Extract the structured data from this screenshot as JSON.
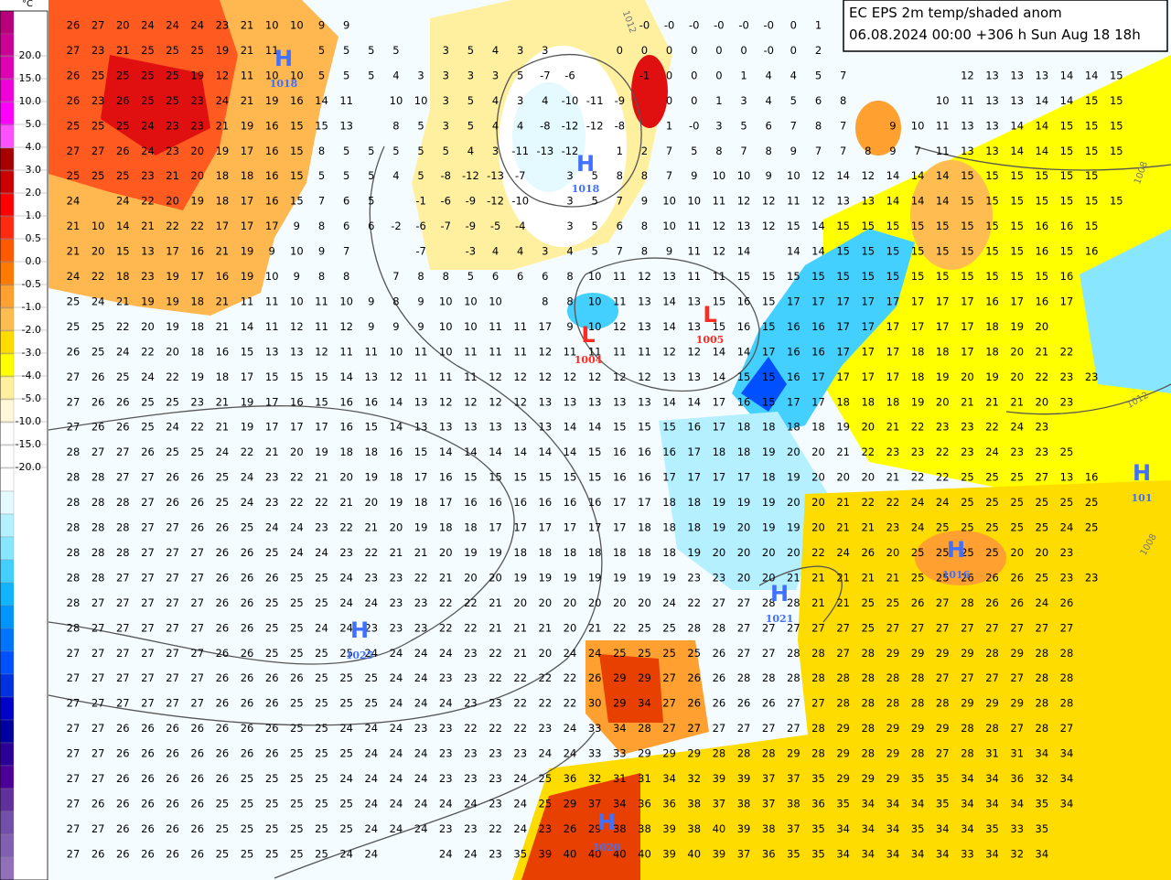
{
  "title_box": {
    "line1": "EC EPS 2m temp/shaded anom",
    "line2": "06.08.2024 00:00 +306 h Sun Aug 18 18h"
  },
  "colorbar": {
    "unit": "°C",
    "labels": [
      "20.0",
      "15.0",
      "10.0",
      "5.0",
      "4.0",
      "3.0",
      "2.0",
      "1.0",
      "0.5",
      "0.0",
      "-0.5",
      "-1.0",
      "-2.0",
      "-3.0",
      "-4.0",
      "-5.0",
      "-10.0",
      "-15.0",
      "-20.0"
    ],
    "colors": [
      "#b8007a",
      "#cc0094",
      "#e000b4",
      "#f000d8",
      "#ff00ff",
      "#ff50ff",
      "#a80000",
      "#cc0000",
      "#ff0000",
      "#ff2a10",
      "#ff5a00",
      "#ff7a00",
      "#ffa030",
      "#ffbc50",
      "#ffdc00",
      "#ffff00",
      "#fff0a0",
      "#fff8d8",
      "#ffffff",
      "#ffffff",
      "#ffffff",
      "#e4faff",
      "#b4f0ff",
      "#88e6ff",
      "#44d0ff",
      "#10b4ff",
      "#0094ff",
      "#0074ff",
      "#0050ff",
      "#0030e0",
      "#0000c8",
      "#0000a0",
      "#2c0098",
      "#4c0098",
      "#60309c",
      "#7050a8",
      "#8060b0",
      "#9070b8"
    ]
  },
  "pressure_centers": [
    {
      "symbol": "H",
      "value": "1018"
    },
    {
      "symbol": "H",
      "value": "1018"
    },
    {
      "symbol": "L",
      "value": "1004"
    },
    {
      "symbol": "L",
      "value": "1005"
    },
    {
      "symbol": "H",
      "value": "1025"
    },
    {
      "symbol": "H",
      "value": "1021"
    },
    {
      "symbol": "H",
      "value": "1016"
    },
    {
      "symbol": "H",
      "value": "1020"
    },
    {
      "symbol": "H",
      "value": "101"
    }
  ],
  "isobar_labels": [
    "1012",
    "1008",
    "1012",
    "1008"
  ],
  "grid": [
    [
      26,
      27,
      20,
      24,
      24,
      24,
      23,
      21,
      10,
      10,
      9,
      9,
      null,
      null,
      null,
      null,
      null,
      null,
      null,
      null,
      null,
      null,
      null,
      {
        "value": 0,
        "label": "-0"
      },
      {
        "value": 0,
        "label": "-0"
      },
      {
        "value": 0,
        "label": "-0"
      },
      {
        "value": 0,
        "label": "-0"
      },
      {
        "value": 0,
        "label": "-0"
      },
      {
        "value": 0,
        "label": "-0"
      },
      0,
      1
    ],
    [
      27,
      23,
      21,
      25,
      25,
      25,
      19,
      21,
      11,
      null,
      5,
      5,
      5,
      5,
      null,
      3,
      5,
      4,
      3,
      3,
      null,
      null,
      0,
      0,
      0,
      0,
      0,
      0,
      {
        "value": 0,
        "label": "-0"
      },
      0,
      2
    ],
    [
      26,
      25,
      25,
      25,
      25,
      19,
      12,
      11,
      10,
      10,
      5,
      5,
      5,
      4,
      3,
      3,
      3,
      3,
      5,
      -7,
      -6,
      null,
      null,
      -1,
      0,
      0,
      0,
      1,
      4,
      4,
      5,
      7,
      null,
      null,
      null,
      null,
      12,
      13,
      13,
      13,
      14,
      14,
      15
    ],
    [
      26,
      23,
      26,
      25,
      25,
      23,
      24,
      21,
      19,
      16,
      14,
      11,
      null,
      10,
      10,
      3,
      5,
      4,
      3,
      4,
      -10,
      -11,
      -9,
      null,
      0,
      0,
      1,
      3,
      4,
      5,
      6,
      8,
      null,
      null,
      null,
      10,
      11,
      13,
      13,
      14,
      14,
      15,
      15
    ],
    [
      25,
      25,
      25,
      24,
      23,
      23,
      21,
      19,
      16,
      15,
      15,
      13,
      null,
      8,
      5,
      3,
      5,
      4,
      4,
      -8,
      -12,
      -12,
      -8,
      null,
      1,
      {
        "value": 0,
        "label": "-0"
      },
      3,
      5,
      6,
      7,
      8,
      7,
      null,
      9,
      10,
      11,
      13,
      13,
      14,
      14,
      15,
      15,
      15
    ],
    [
      27,
      27,
      26,
      24,
      23,
      20,
      19,
      17,
      16,
      15,
      8,
      5,
      5,
      5,
      5,
      5,
      4,
      3,
      -11,
      -13,
      -12,
      null,
      1,
      2,
      7,
      5,
      8,
      7,
      8,
      9,
      7,
      7,
      8,
      9,
      7,
      11,
      13,
      13,
      14,
      14,
      15,
      15,
      15
    ],
    [
      25,
      25,
      25,
      23,
      21,
      20,
      18,
      18,
      16,
      15,
      5,
      5,
      5,
      4,
      5,
      -8,
      -12,
      -13,
      -7,
      null,
      3,
      5,
      8,
      8,
      7,
      9,
      10,
      10,
      9,
      10,
      12,
      14,
      12,
      14,
      14,
      14,
      15,
      15,
      15,
      15,
      15,
      15
    ],
    [
      24,
      null,
      24,
      22,
      20,
      19,
      18,
      17,
      16,
      15,
      7,
      6,
      5,
      null,
      -1,
      -6,
      -9,
      -12,
      -10,
      null,
      3,
      5,
      7,
      9,
      10,
      10,
      11,
      12,
      12,
      11,
      12,
      13,
      13,
      14,
      14,
      14,
      15,
      15,
      15,
      15,
      15,
      15,
      15
    ],
    [
      21,
      10,
      14,
      21,
      22,
      22,
      17,
      17,
      17,
      9,
      8,
      6,
      6,
      -2,
      -6,
      -7,
      -9,
      -5,
      -4,
      null,
      3,
      5,
      6,
      8,
      10,
      11,
      12,
      13,
      12,
      15,
      14,
      15,
      15,
      15,
      15,
      15,
      15,
      15,
      15,
      16,
      16,
      15
    ],
    [
      21,
      20,
      15,
      13,
      17,
      16,
      21,
      19,
      9,
      10,
      9,
      7,
      null,
      null,
      -7,
      null,
      -3,
      4,
      4,
      3,
      4,
      5,
      7,
      8,
      9,
      11,
      12,
      14,
      null,
      14,
      14,
      15,
      15,
      15,
      15,
      15,
      15,
      15,
      15,
      16,
      15,
      16
    ],
    [
      24,
      22,
      18,
      23,
      19,
      17,
      16,
      19,
      10,
      9,
      8,
      8,
      null,
      7,
      8,
      8,
      5,
      6,
      6,
      6,
      8,
      10,
      11,
      12,
      13,
      11,
      11,
      15,
      15,
      15,
      15,
      15,
      15,
      15,
      15,
      15,
      15,
      15,
      15,
      15,
      16
    ],
    [
      25,
      24,
      21,
      19,
      19,
      18,
      21,
      11,
      11,
      10,
      11,
      10,
      9,
      8,
      9,
      10,
      10,
      10,
      null,
      8,
      8,
      10,
      11,
      13,
      14,
      13,
      15,
      16,
      15,
      17,
      17,
      17,
      17,
      17,
      17,
      17,
      17,
      16,
      17,
      16,
      17
    ],
    [
      25,
      25,
      22,
      20,
      19,
      18,
      21,
      14,
      11,
      12,
      11,
      12,
      9,
      9,
      9,
      10,
      10,
      11,
      11,
      17,
      9,
      10,
      12,
      13,
      14,
      13,
      15,
      16,
      15,
      16,
      16,
      17,
      17,
      17,
      17,
      17,
      17,
      18,
      19,
      20
    ],
    [
      26,
      25,
      24,
      22,
      20,
      18,
      16,
      15,
      13,
      13,
      12,
      11,
      11,
      10,
      11,
      10,
      11,
      11,
      11,
      12,
      11,
      11,
      11,
      11,
      12,
      12,
      14,
      14,
      17,
      16,
      16,
      17,
      17,
      17,
      18,
      18,
      17,
      18,
      20,
      21,
      22
    ],
    [
      27,
      26,
      25,
      24,
      22,
      19,
      18,
      17,
      15,
      15,
      15,
      14,
      13,
      12,
      11,
      11,
      11,
      12,
      12,
      12,
      12,
      12,
      12,
      12,
      13,
      13,
      14,
      15,
      15,
      16,
      17,
      17,
      17,
      17,
      18,
      19,
      20,
      19,
      20,
      22,
      23,
      23
    ],
    [
      27,
      26,
      26,
      25,
      25,
      23,
      21,
      19,
      17,
      16,
      15,
      16,
      16,
      14,
      13,
      12,
      12,
      12,
      12,
      13,
      13,
      13,
      13,
      13,
      14,
      14,
      17,
      16,
      15,
      17,
      17,
      18,
      18,
      18,
      19,
      20,
      21,
      21,
      21,
      20,
      23
    ],
    [
      27,
      26,
      26,
      25,
      24,
      22,
      21,
      19,
      17,
      17,
      17,
      16,
      15,
      14,
      13,
      13,
      13,
      13,
      13,
      13,
      14,
      14,
      15,
      15,
      15,
      16,
      17,
      18,
      18,
      18,
      18,
      19,
      20,
      21,
      22,
      23,
      23,
      22,
      24,
      23
    ],
    [
      28,
      27,
      27,
      26,
      25,
      25,
      24,
      22,
      21,
      20,
      19,
      18,
      18,
      16,
      15,
      14,
      14,
      14,
      14,
      14,
      14,
      15,
      16,
      16,
      16,
      17,
      18,
      18,
      19,
      20,
      20,
      21,
      22,
      23,
      23,
      22,
      23,
      24,
      23,
      23,
      25
    ],
    [
      28,
      28,
      27,
      27,
      26,
      26,
      25,
      24,
      23,
      22,
      21,
      20,
      19,
      18,
      17,
      16,
      15,
      15,
      15,
      15,
      15,
      15,
      16,
      16,
      17,
      17,
      17,
      17,
      18,
      19,
      20,
      20,
      20,
      21,
      22,
      22,
      25,
      25,
      25,
      27,
      13,
      16
    ],
    [
      28,
      28,
      28,
      27,
      26,
      26,
      25,
      24,
      23,
      22,
      22,
      21,
      20,
      19,
      18,
      17,
      16,
      16,
      16,
      16,
      16,
      16,
      17,
      17,
      18,
      18,
      19,
      19,
      19,
      20,
      20,
      21,
      22,
      22,
      24,
      24,
      25,
      25,
      25,
      25,
      25,
      25
    ],
    [
      28,
      28,
      28,
      27,
      27,
      26,
      26,
      25,
      24,
      24,
      23,
      22,
      21,
      20,
      19,
      18,
      18,
      17,
      17,
      17,
      17,
      17,
      17,
      18,
      18,
      18,
      19,
      20,
      19,
      19,
      20,
      21,
      21,
      23,
      24,
      25,
      25,
      25,
      25,
      25,
      24,
      25
    ],
    [
      28,
      28,
      28,
      27,
      27,
      27,
      26,
      26,
      25,
      24,
      24,
      23,
      22,
      21,
      21,
      20,
      19,
      19,
      18,
      18,
      18,
      18,
      18,
      18,
      18,
      19,
      20,
      20,
      20,
      20,
      22,
      24,
      26,
      20,
      25,
      25,
      25,
      25,
      20,
      20,
      23
    ],
    [
      28,
      28,
      27,
      27,
      27,
      27,
      26,
      26,
      26,
      25,
      25,
      24,
      23,
      23,
      22,
      21,
      20,
      20,
      19,
      19,
      19,
      19,
      19,
      19,
      19,
      23,
      23,
      20,
      20,
      21,
      21,
      21,
      21,
      21,
      25,
      25,
      26,
      26,
      26,
      25,
      23,
      23
    ],
    [
      28,
      27,
      27,
      27,
      27,
      27,
      26,
      26,
      25,
      25,
      25,
      24,
      24,
      23,
      23,
      22,
      22,
      21,
      20,
      20,
      20,
      20,
      20,
      20,
      24,
      22,
      27,
      27,
      28,
      28,
      21,
      21,
      25,
      25,
      26,
      27,
      28,
      26,
      26,
      24,
      26
    ],
    [
      28,
      27,
      27,
      27,
      27,
      27,
      26,
      26,
      25,
      25,
      24,
      24,
      23,
      23,
      23,
      22,
      22,
      21,
      21,
      21,
      20,
      21,
      22,
      25,
      25,
      28,
      28,
      27,
      27,
      27,
      27,
      27,
      25,
      27,
      27,
      27,
      27,
      27,
      27,
      27,
      27
    ],
    [
      27,
      27,
      27,
      27,
      27,
      27,
      26,
      26,
      25,
      25,
      25,
      25,
      24,
      24,
      24,
      24,
      23,
      22,
      21,
      20,
      24,
      24,
      25,
      25,
      25,
      25,
      26,
      27,
      27,
      28,
      28,
      27,
      28,
      29,
      29,
      29,
      29,
      28,
      29,
      28,
      28
    ],
    [
      27,
      27,
      27,
      27,
      27,
      27,
      26,
      26,
      26,
      26,
      25,
      25,
      25,
      24,
      24,
      23,
      23,
      22,
      22,
      22,
      22,
      26,
      29,
      29,
      27,
      26,
      26,
      28,
      28,
      28,
      28,
      28,
      28,
      28,
      28,
      27,
      27,
      27,
      27,
      28,
      28
    ],
    [
      27,
      27,
      27,
      27,
      27,
      27,
      26,
      26,
      26,
      25,
      25,
      25,
      25,
      24,
      24,
      24,
      23,
      23,
      22,
      22,
      22,
      30,
      29,
      34,
      27,
      26,
      26,
      26,
      26,
      27,
      27,
      28,
      28,
      28,
      28,
      28,
      29,
      29,
      29,
      28,
      28
    ],
    [
      27,
      27,
      26,
      26,
      26,
      26,
      26,
      26,
      26,
      25,
      25,
      24,
      24,
      24,
      23,
      23,
      22,
      22,
      22,
      23,
      24,
      33,
      34,
      28,
      27,
      27,
      27,
      27,
      27,
      27,
      28,
      29,
      28,
      29,
      29,
      29,
      28,
      28,
      27,
      28,
      27
    ],
    [
      27,
      27,
      26,
      26,
      26,
      26,
      26,
      26,
      26,
      25,
      25,
      25,
      24,
      24,
      24,
      23,
      23,
      23,
      23,
      24,
      24,
      33,
      33,
      29,
      29,
      29,
      28,
      28,
      28,
      29,
      28,
      29,
      28,
      29,
      28,
      27,
      28,
      31,
      31,
      34,
      34
    ],
    [
      27,
      27,
      26,
      26,
      26,
      26,
      26,
      25,
      25,
      25,
      25,
      24,
      24,
      24,
      24,
      23,
      23,
      23,
      24,
      25,
      36,
      32,
      31,
      31,
      34,
      32,
      39,
      39,
      37,
      37,
      35,
      29,
      29,
      29,
      35,
      35,
      34,
      34,
      36,
      32,
      34
    ],
    [
      27,
      26,
      26,
      26,
      26,
      26,
      25,
      25,
      25,
      25,
      25,
      25,
      24,
      24,
      24,
      24,
      24,
      23,
      24,
      25,
      29,
      37,
      34,
      36,
      36,
      38,
      37,
      38,
      37,
      38,
      36,
      35,
      34,
      34,
      34,
      35,
      34,
      34,
      34,
      35,
      34
    ],
    [
      27,
      27,
      26,
      26,
      26,
      26,
      25,
      25,
      25,
      25,
      25,
      25,
      24,
      24,
      24,
      23,
      23,
      22,
      24,
      23,
      26,
      29,
      38,
      38,
      39,
      38,
      40,
      39,
      38,
      37,
      35,
      34,
      34,
      34,
      35,
      34,
      34,
      35,
      33,
      35
    ],
    [
      27,
      26,
      26,
      26,
      26,
      26,
      25,
      25,
      25,
      25,
      25,
      24,
      24,
      null,
      null,
      24,
      24,
      23,
      35,
      39,
      40,
      40,
      40,
      40,
      39,
      40,
      39,
      37,
      36,
      35,
      35,
      34,
      34,
      34,
      34,
      34,
      33,
      34,
      32,
      34
    ]
  ]
}
